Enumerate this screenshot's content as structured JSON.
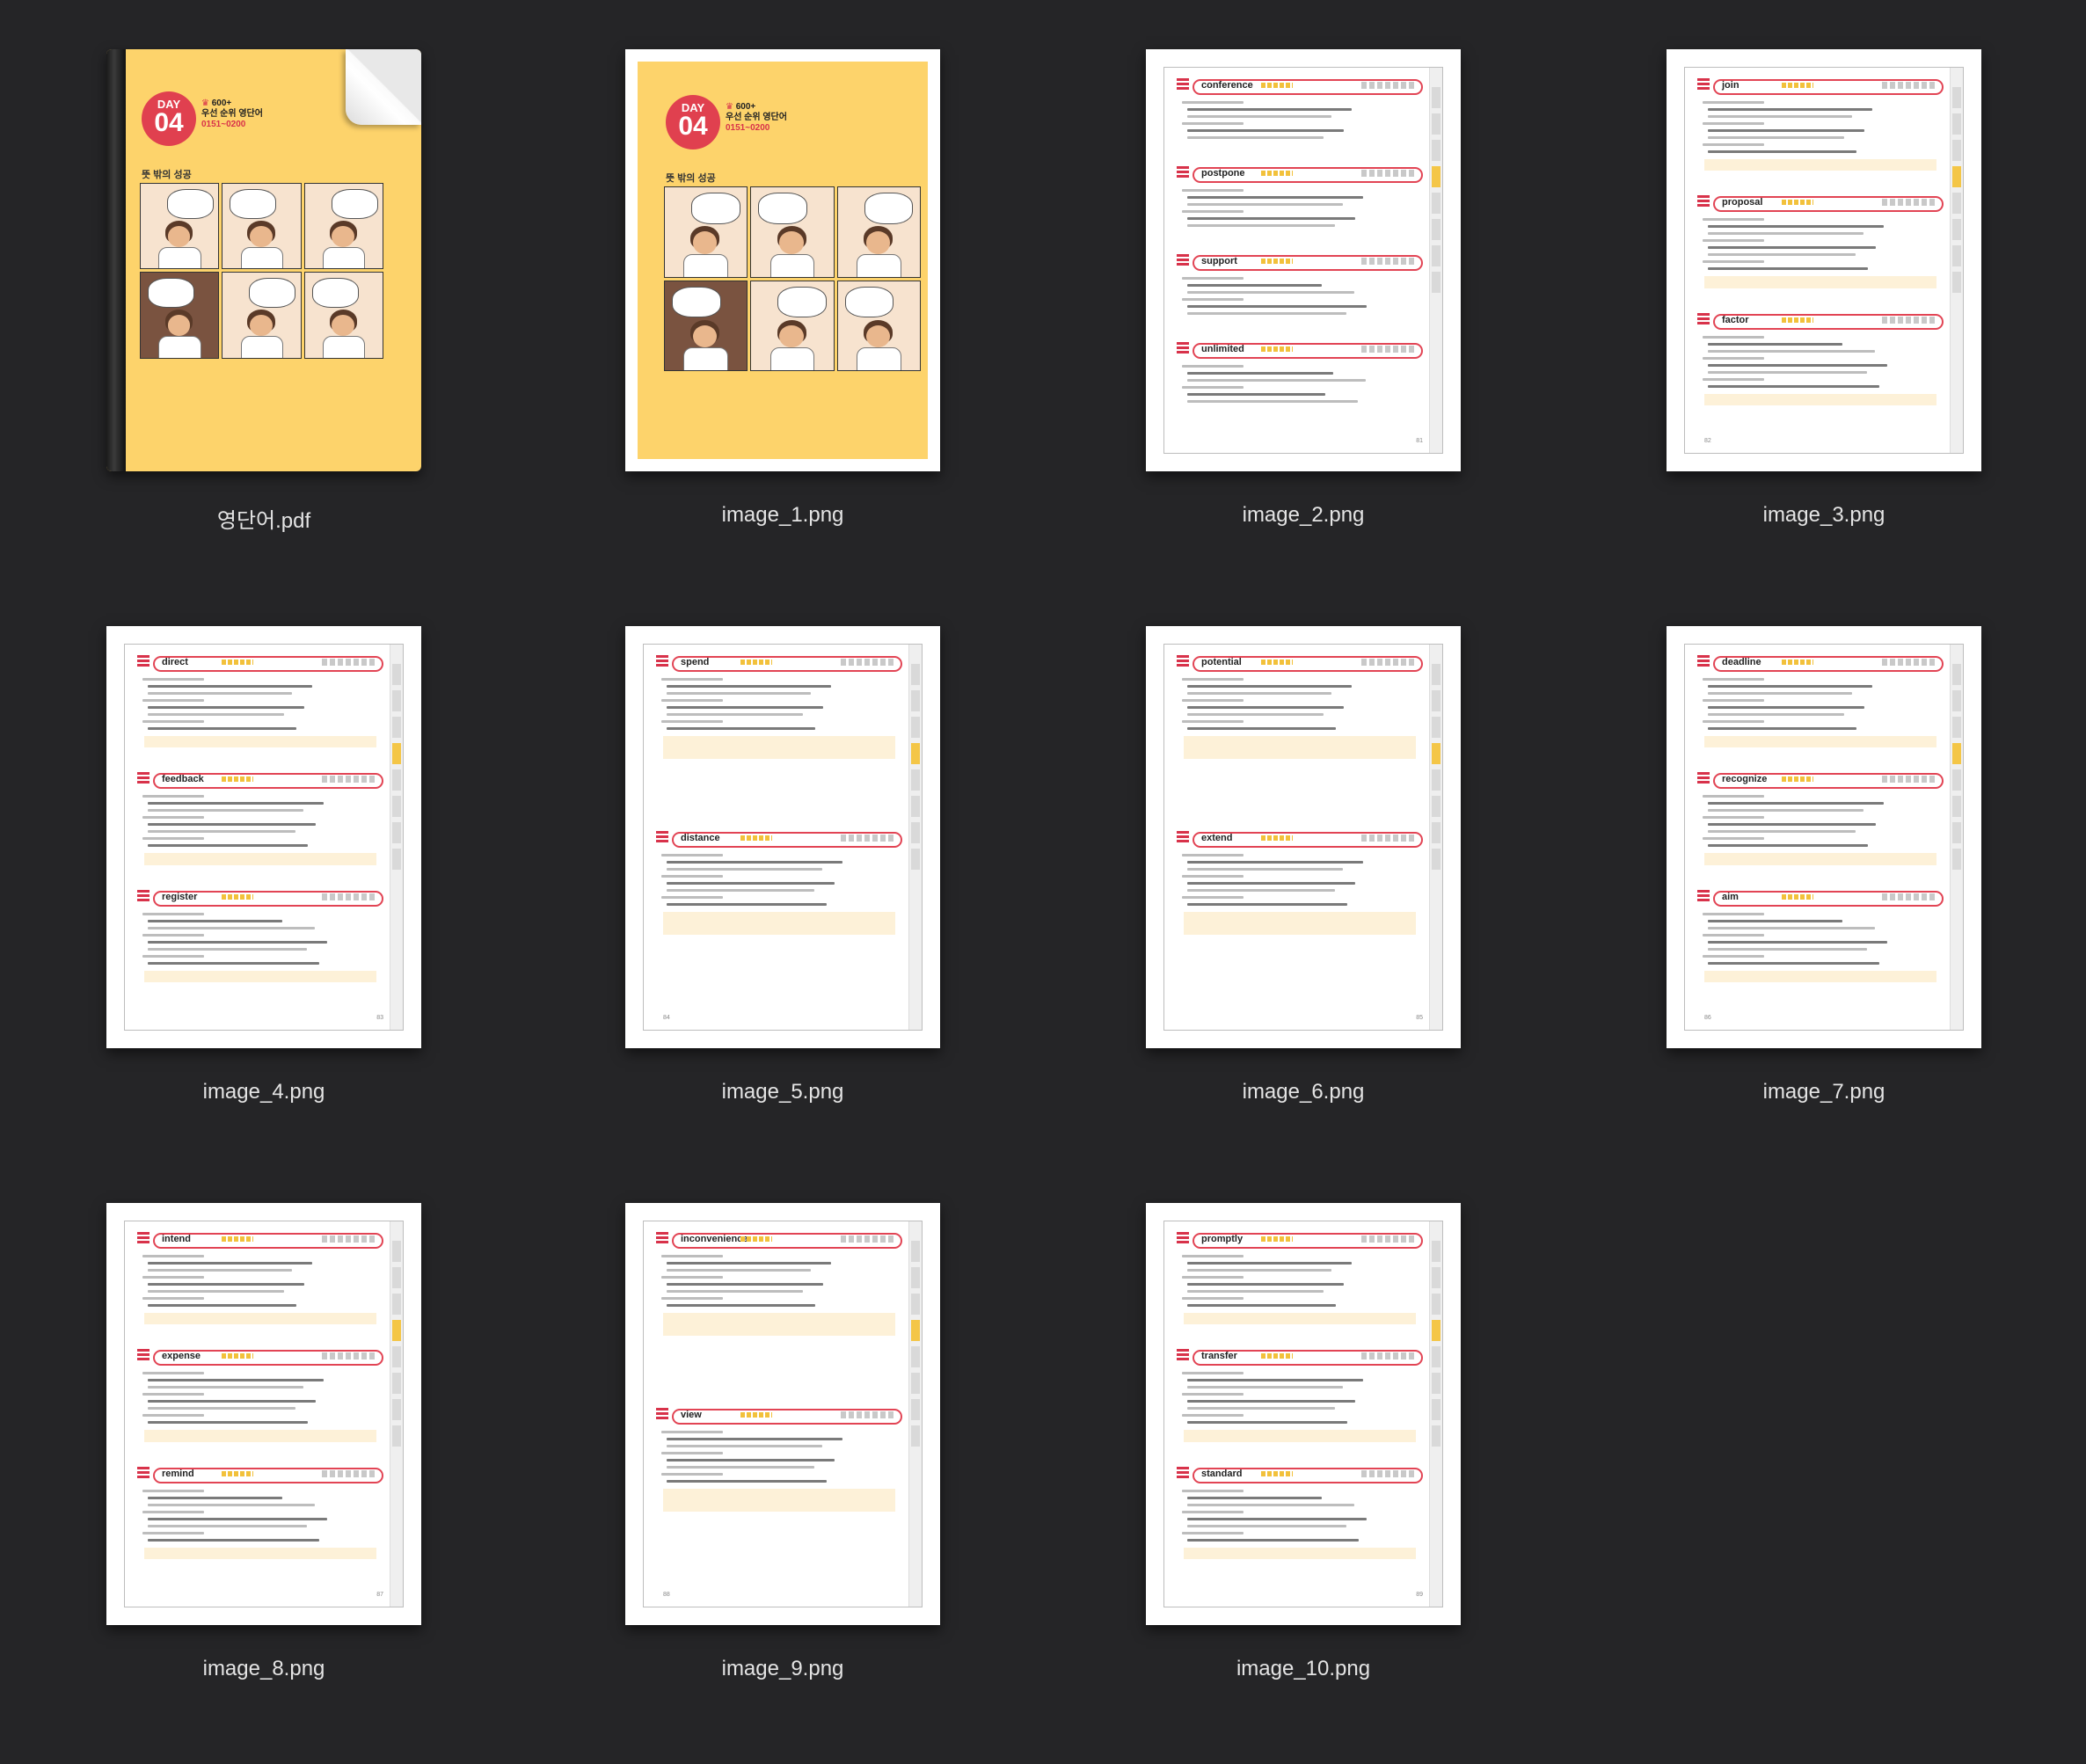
{
  "files": [
    {
      "name": "영단어.pdf",
      "kind": "pdf-cover"
    },
    {
      "name": "image_1.png",
      "kind": "cover-page"
    },
    {
      "name": "image_2.png",
      "kind": "page",
      "page_number": "81",
      "words": [
        "conference",
        "postpone",
        "support",
        "unlimited"
      ]
    },
    {
      "name": "image_3.png",
      "kind": "page",
      "page_number": "82",
      "words": [
        "join",
        "proposal",
        "factor"
      ]
    },
    {
      "name": "image_4.png",
      "kind": "page",
      "page_number": "83",
      "words": [
        "direct",
        "feedback",
        "register"
      ]
    },
    {
      "name": "image_5.png",
      "kind": "page",
      "page_number": "84",
      "words": [
        "spend",
        "distance"
      ]
    },
    {
      "name": "image_6.png",
      "kind": "page",
      "page_number": "85",
      "words": [
        "potential",
        "extend"
      ]
    },
    {
      "name": "image_7.png",
      "kind": "page",
      "page_number": "86",
      "words": [
        "deadline",
        "recognize",
        "aim"
      ]
    },
    {
      "name": "image_8.png",
      "kind": "page",
      "page_number": "87",
      "words": [
        "intend",
        "expense",
        "remind"
      ]
    },
    {
      "name": "image_9.png",
      "kind": "page",
      "page_number": "88",
      "words": [
        "inconvenience",
        "view"
      ]
    },
    {
      "name": "image_10.png",
      "kind": "page",
      "page_number": "89",
      "words": [
        "promptly",
        "transfer",
        "standard"
      ]
    }
  ],
  "cover": {
    "day_label": "DAY",
    "day_number": "04",
    "title_line1": "600+",
    "title_line2": "우선 순위 영단어",
    "range": "0151~0200",
    "comic_title": "뜻 밖의 성공"
  },
  "colors": {
    "background": "#252527",
    "cover_yellow": "#fdd36b",
    "accent_red": "#e24454",
    "highlight": "#fdf1d8"
  }
}
